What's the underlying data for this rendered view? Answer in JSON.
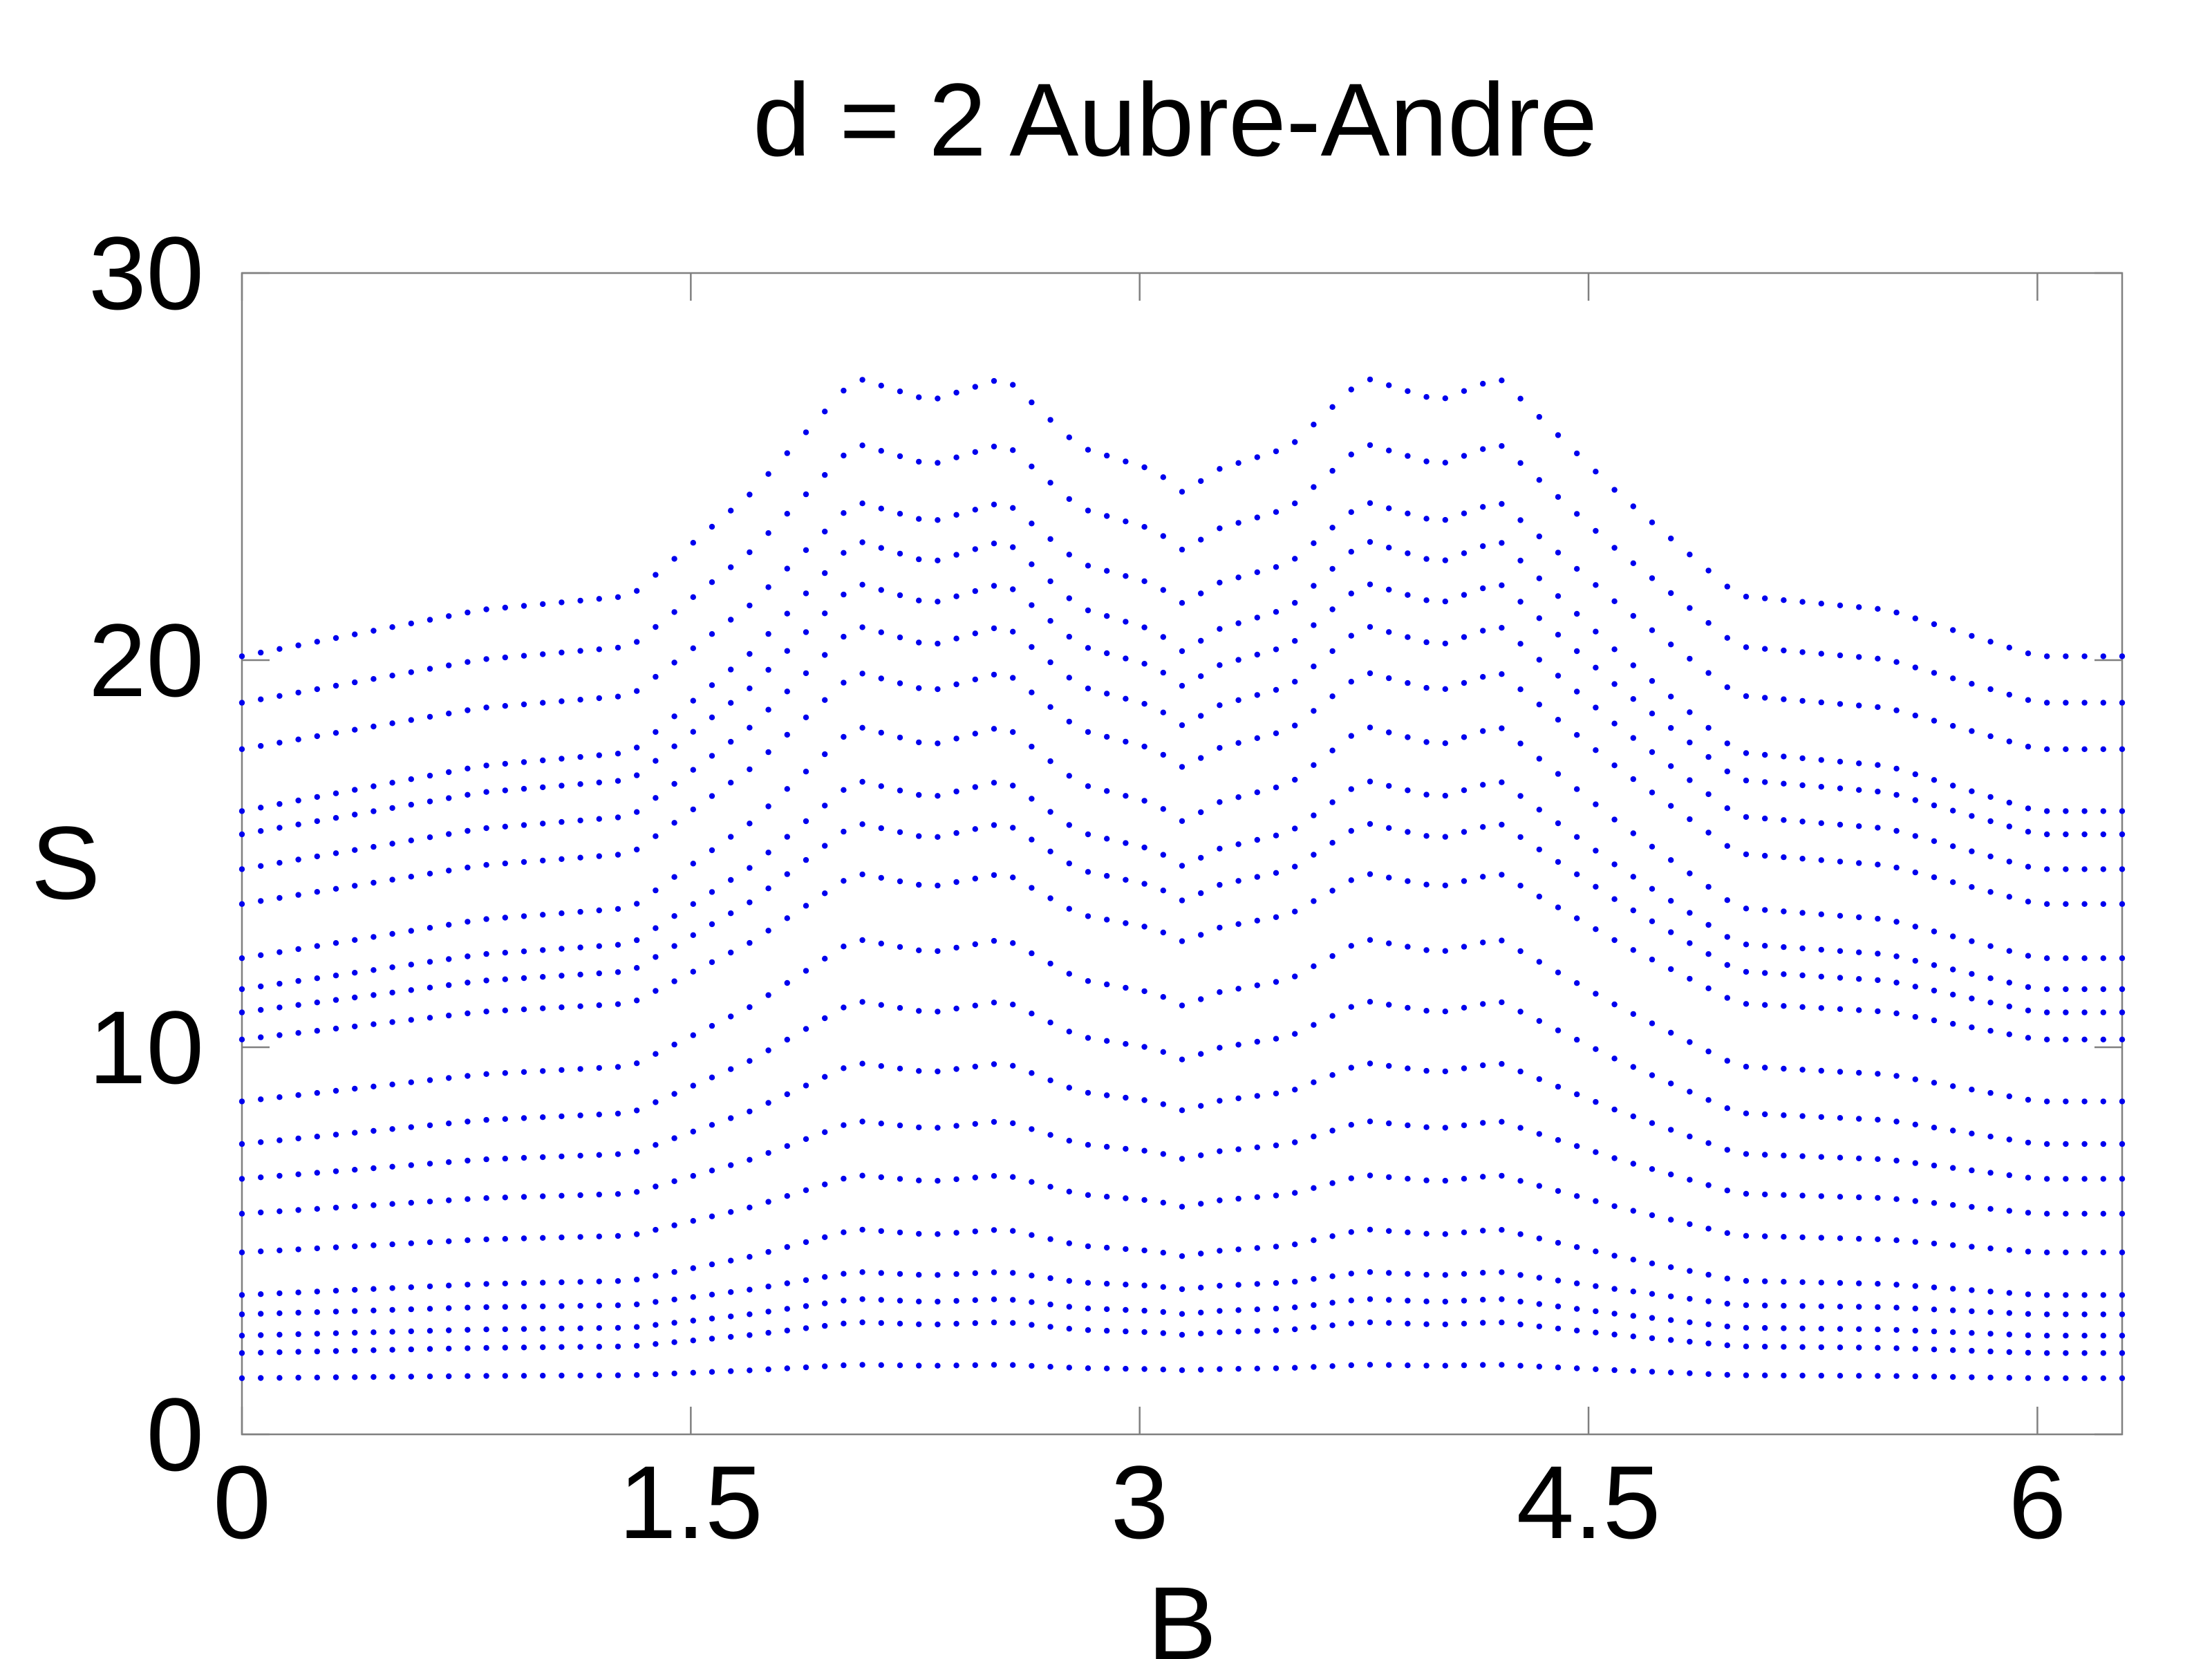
{
  "chart_data": {
    "type": "scatter",
    "title": "d = 2 Aubre-Andre",
    "xlabel": "B",
    "ylabel": "S",
    "xlim": [
      0,
      6.2832
    ],
    "ylim": [
      0,
      30
    ],
    "x_ticks": [
      0,
      1.5,
      3,
      4.5,
      6
    ],
    "x_tick_labels": [
      "0",
      "1.5",
      "3",
      "4.5",
      "6"
    ],
    "y_ticks": [
      0,
      10,
      20,
      30
    ],
    "y_tick_labels": [
      "0",
      "10",
      "20",
      "30"
    ],
    "grid": false,
    "legend": "none",
    "marker_color": "#0000ee",
    "sample_count": 100,
    "series_profile": {
      "B": [
        0,
        0.8,
        1.3,
        1.7,
        2.05,
        2.3,
        2.55,
        2.8,
        3.05,
        3.15,
        3.25,
        3.5,
        3.75,
        4.0,
        4.2,
        4.6,
        5.0,
        5.5,
        6.0,
        6.2832
      ],
      "bump": [
        0,
        0.1,
        0.13,
        0.35,
        0.6,
        0.55,
        0.6,
        0.45,
        0.4,
        0.35,
        0.4,
        0.45,
        0.6,
        0.55,
        0.6,
        0.35,
        0.13,
        0.1,
        0.0,
        0
      ]
    },
    "series_baseline_S": [
      1.45,
      2.1,
      2.55,
      3.1,
      3.6,
      4.7,
      5.7,
      6.6,
      7.5,
      8.6,
      10.2,
      10.9,
      11.5,
      12.3,
      13.7,
      14.6,
      15.5,
      16.1,
      17.7,
      18.9,
      20.1
    ],
    "series_peak_S": [
      1.8,
      2.9,
      3.5,
      4.2,
      5.3,
      6.7,
      8.1,
      9.6,
      11.2,
      12.8,
      14.5,
      15.8,
      16.9,
      18.3,
      19.7,
      20.9,
      22.0,
      23.1,
      24.1,
      25.6,
      27.3
    ]
  }
}
